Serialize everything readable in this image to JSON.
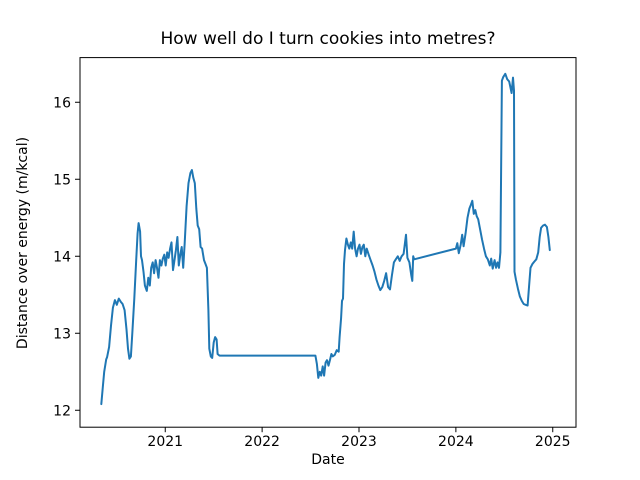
{
  "figure": {
    "background_color": "#ffffff",
    "text_color": "#000000"
  },
  "chart_data": {
    "type": "line",
    "title": "How well do I turn cookies into metres?",
    "xlabel": "Date",
    "ylabel": "Distance over energy (m/kcal)",
    "x_ticks": [
      "2021",
      "2022",
      "2023",
      "2024",
      "2025"
    ],
    "x_tick_values": [
      2021,
      2022,
      2023,
      2024,
      2025
    ],
    "y_ticks": [
      "12",
      "13",
      "14",
      "15",
      "16"
    ],
    "y_tick_values": [
      12,
      13,
      14,
      15,
      16
    ],
    "xlim": [
      2020.12,
      2025.24
    ],
    "ylim": [
      11.78,
      16.58
    ],
    "grid": false,
    "legend": "none",
    "line_color": "#1f77b4",
    "series": [
      {
        "name": "distance-over-energy",
        "points": [
          [
            2020.34,
            12.08
          ],
          [
            2020.355,
            12.3
          ],
          [
            2020.37,
            12.5
          ],
          [
            2020.39,
            12.66
          ],
          [
            2020.4,
            12.69
          ],
          [
            2020.42,
            12.82
          ],
          [
            2020.44,
            13.1
          ],
          [
            2020.46,
            13.33
          ],
          [
            2020.48,
            13.43
          ],
          [
            2020.5,
            13.37
          ],
          [
            2020.52,
            13.45
          ],
          [
            2020.54,
            13.41
          ],
          [
            2020.56,
            13.38
          ],
          [
            2020.58,
            13.3
          ],
          [
            2020.6,
            13.05
          ],
          [
            2020.615,
            12.8
          ],
          [
            2020.63,
            12.67
          ],
          [
            2020.645,
            12.7
          ],
          [
            2020.66,
            13.0
          ],
          [
            2020.68,
            13.45
          ],
          [
            2020.7,
            13.95
          ],
          [
            2020.715,
            14.3
          ],
          [
            2020.725,
            14.43
          ],
          [
            2020.74,
            14.32
          ],
          [
            2020.75,
            14.0
          ],
          [
            2020.76,
            13.95
          ],
          [
            2020.775,
            13.8
          ],
          [
            2020.79,
            13.62
          ],
          [
            2020.81,
            13.55
          ],
          [
            2020.825,
            13.72
          ],
          [
            2020.84,
            13.62
          ],
          [
            2020.855,
            13.85
          ],
          [
            2020.87,
            13.92
          ],
          [
            2020.885,
            13.78
          ],
          [
            2020.9,
            13.95
          ],
          [
            2020.915,
            13.85
          ],
          [
            2020.93,
            13.72
          ],
          [
            2020.945,
            13.95
          ],
          [
            2020.96,
            13.88
          ],
          [
            2020.975,
            13.97
          ],
          [
            2020.99,
            14.02
          ],
          [
            2021.005,
            13.88
          ],
          [
            2021.02,
            14.05
          ],
          [
            2021.035,
            13.98
          ],
          [
            2021.05,
            14.1
          ],
          [
            2021.065,
            14.18
          ],
          [
            2021.08,
            13.82
          ],
          [
            2021.095,
            13.95
          ],
          [
            2021.11,
            14.08
          ],
          [
            2021.125,
            14.25
          ],
          [
            2021.14,
            13.88
          ],
          [
            2021.155,
            14.02
          ],
          [
            2021.17,
            14.12
          ],
          [
            2021.185,
            13.85
          ],
          [
            2021.2,
            14.15
          ],
          [
            2021.22,
            14.65
          ],
          [
            2021.24,
            14.95
          ],
          [
            2021.26,
            15.08
          ],
          [
            2021.275,
            15.12
          ],
          [
            2021.29,
            15.02
          ],
          [
            2021.305,
            14.95
          ],
          [
            2021.32,
            14.62
          ],
          [
            2021.335,
            14.4
          ],
          [
            2021.35,
            14.35
          ],
          [
            2021.365,
            14.12
          ],
          [
            2021.38,
            14.1
          ],
          [
            2021.4,
            13.95
          ],
          [
            2021.415,
            13.9
          ],
          [
            2021.43,
            13.85
          ],
          [
            2021.445,
            13.3
          ],
          [
            2021.455,
            12.8
          ],
          [
            2021.47,
            12.7
          ],
          [
            2021.485,
            12.68
          ],
          [
            2021.5,
            12.88
          ],
          [
            2021.515,
            12.95
          ],
          [
            2021.53,
            12.92
          ],
          [
            2021.54,
            12.73
          ],
          [
            2021.56,
            12.71
          ],
          [
            2022.55,
            12.71
          ],
          [
            2022.565,
            12.6
          ],
          [
            2022.58,
            12.42
          ],
          [
            2022.595,
            12.5
          ],
          [
            2022.61,
            12.45
          ],
          [
            2022.625,
            12.57
          ],
          [
            2022.64,
            12.45
          ],
          [
            2022.655,
            12.62
          ],
          [
            2022.67,
            12.65
          ],
          [
            2022.685,
            12.58
          ],
          [
            2022.7,
            12.65
          ],
          [
            2022.715,
            12.73
          ],
          [
            2022.73,
            12.7
          ],
          [
            2022.75,
            12.72
          ],
          [
            2022.77,
            12.78
          ],
          [
            2022.79,
            12.76
          ],
          [
            2022.8,
            12.95
          ],
          [
            2022.815,
            13.2
          ],
          [
            2022.825,
            13.42
          ],
          [
            2022.835,
            13.45
          ],
          [
            2022.845,
            13.9
          ],
          [
            2022.855,
            14.08
          ],
          [
            2022.87,
            14.23
          ],
          [
            2022.885,
            14.15
          ],
          [
            2022.9,
            14.1
          ],
          [
            2022.915,
            14.18
          ],
          [
            2022.93,
            14.1
          ],
          [
            2022.945,
            14.32
          ],
          [
            2022.96,
            14.1
          ],
          [
            2022.975,
            14.0
          ],
          [
            2022.99,
            14.1
          ],
          [
            2023.005,
            14.15
          ],
          [
            2023.02,
            14.03
          ],
          [
            2023.035,
            14.12
          ],
          [
            2023.05,
            14.15
          ],
          [
            2023.065,
            14.0
          ],
          [
            2023.08,
            14.1
          ],
          [
            2023.1,
            14.02
          ],
          [
            2023.12,
            13.95
          ],
          [
            2023.14,
            13.88
          ],
          [
            2023.16,
            13.8
          ],
          [
            2023.18,
            13.7
          ],
          [
            2023.2,
            13.62
          ],
          [
            2023.22,
            13.56
          ],
          [
            2023.24,
            13.6
          ],
          [
            2023.26,
            13.68
          ],
          [
            2023.28,
            13.78
          ],
          [
            2023.3,
            13.6
          ],
          [
            2023.32,
            13.57
          ],
          [
            2023.34,
            13.75
          ],
          [
            2023.36,
            13.92
          ],
          [
            2023.38,
            13.96
          ],
          [
            2023.4,
            14.0
          ],
          [
            2023.42,
            13.94
          ],
          [
            2023.44,
            14.0
          ],
          [
            2023.46,
            14.03
          ],
          [
            2023.485,
            14.28
          ],
          [
            2023.5,
            13.98
          ],
          [
            2023.52,
            13.92
          ],
          [
            2023.54,
            13.75
          ],
          [
            2023.55,
            13.68
          ],
          [
            2023.56,
            14.0
          ],
          [
            2023.57,
            13.96
          ],
          [
            2024.0,
            14.1
          ],
          [
            2024.015,
            14.17
          ],
          [
            2024.03,
            14.04
          ],
          [
            2024.05,
            14.15
          ],
          [
            2024.065,
            14.28
          ],
          [
            2024.08,
            14.13
          ],
          [
            2024.1,
            14.3
          ],
          [
            2024.12,
            14.5
          ],
          [
            2024.14,
            14.62
          ],
          [
            2024.155,
            14.67
          ],
          [
            2024.17,
            14.72
          ],
          [
            2024.185,
            14.55
          ],
          [
            2024.2,
            14.6
          ],
          [
            2024.215,
            14.52
          ],
          [
            2024.23,
            14.48
          ],
          [
            2024.25,
            14.35
          ],
          [
            2024.27,
            14.22
          ],
          [
            2024.29,
            14.1
          ],
          [
            2024.31,
            14.0
          ],
          [
            2024.33,
            13.96
          ],
          [
            2024.35,
            13.88
          ],
          [
            2024.365,
            13.97
          ],
          [
            2024.38,
            13.84
          ],
          [
            2024.4,
            13.95
          ],
          [
            2024.415,
            13.85
          ],
          [
            2024.43,
            13.92
          ],
          [
            2024.445,
            13.85
          ],
          [
            2024.46,
            14.05
          ],
          [
            2024.475,
            16.28
          ],
          [
            2024.49,
            16.33
          ],
          [
            2024.51,
            16.37
          ],
          [
            2024.53,
            16.3
          ],
          [
            2024.55,
            16.27
          ],
          [
            2024.575,
            16.12
          ],
          [
            2024.59,
            16.32
          ],
          [
            2024.6,
            16.15
          ],
          [
            2024.605,
            13.8
          ],
          [
            2024.62,
            13.7
          ],
          [
            2024.64,
            13.58
          ],
          [
            2024.66,
            13.48
          ],
          [
            2024.68,
            13.42
          ],
          [
            2024.7,
            13.38
          ],
          [
            2024.72,
            13.37
          ],
          [
            2024.74,
            13.36
          ],
          [
            2024.755,
            13.6
          ],
          [
            2024.77,
            13.85
          ],
          [
            2024.79,
            13.9
          ],
          [
            2024.81,
            13.93
          ],
          [
            2024.83,
            13.96
          ],
          [
            2024.85,
            14.05
          ],
          [
            2024.865,
            14.25
          ],
          [
            2024.88,
            14.37
          ],
          [
            2024.9,
            14.4
          ],
          [
            2024.92,
            14.41
          ],
          [
            2024.94,
            14.38
          ],
          [
            2024.955,
            14.25
          ],
          [
            2024.97,
            14.08
          ]
        ]
      }
    ]
  }
}
